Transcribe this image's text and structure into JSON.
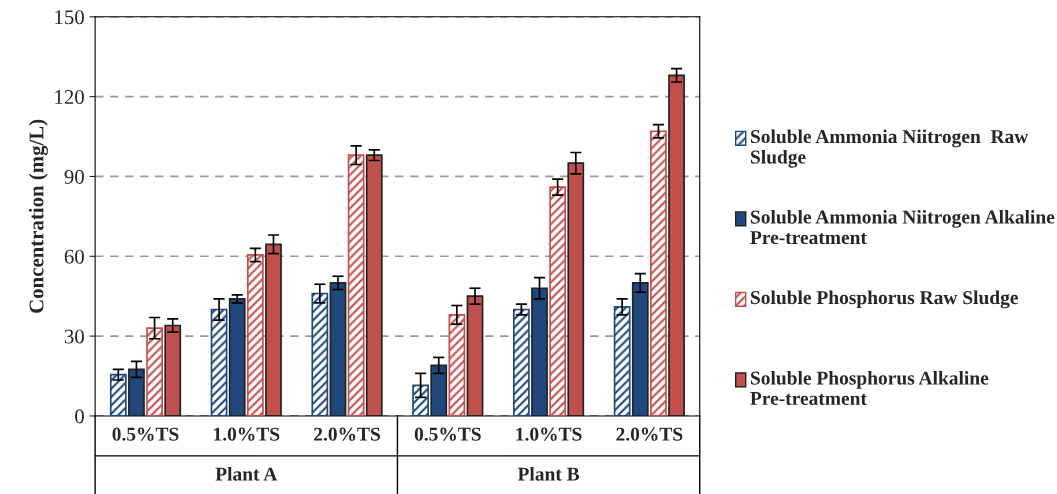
{
  "chart_data": {
    "type": "bar",
    "ylabel": "Concentration (mg/L)",
    "categories": [
      "0.5%TS",
      "1.0%TS",
      "2.0%TS",
      "0.5%TS",
      "1.0%TS",
      "2.0%TS"
    ],
    "annotations": [
      "Plant A",
      "Plant B"
    ],
    "series": [
      {
        "name": "Soluble Ammonia Niitrogen  Raw Sludge",
        "color": "#1f497d",
        "values": [
          15.5,
          40,
          46,
          11.5,
          40,
          41
        ],
        "errors": [
          2,
          4,
          3.5,
          4.5,
          2,
          3
        ]
      },
      {
        "name": "Soluble Ammonia Niitrogen Alkaline Pre-treatment",
        "color": "#1f497d",
        "values": [
          17.5,
          44,
          50,
          19,
          48,
          50
        ],
        "errors": [
          3,
          1.5,
          2.5,
          3,
          4,
          3.5
        ]
      },
      {
        "name": "Soluble Phosphorus Raw Sludge",
        "color": "#c0504d",
        "values": [
          33,
          60.5,
          98,
          38,
          86,
          107
        ],
        "errors": [
          4,
          2.5,
          3.5,
          3.5,
          3,
          2.5
        ]
      },
      {
        "name": "Soluble Phosphorus Alkaline Pre-treatment",
        "color": "#c0504d",
        "values": [
          34,
          64.5,
          98,
          45,
          95,
          128
        ],
        "errors": [
          2.5,
          3.5,
          2,
          3,
          4,
          2.5
        ]
      }
    ],
    "ylim": [
      0,
      150
    ],
    "yticks": [
      0,
      30,
      60,
      90,
      120,
      150
    ],
    "grid": "y",
    "legend": "right"
  }
}
